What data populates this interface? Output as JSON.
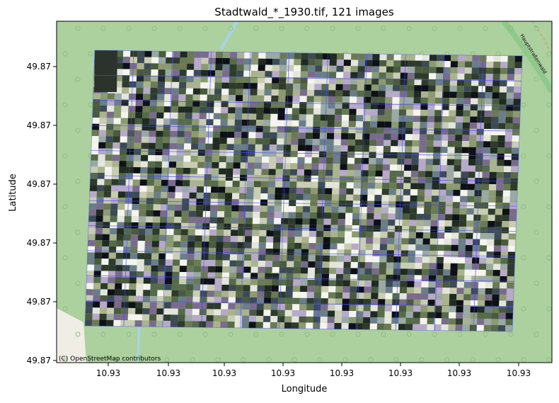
{
  "chart_data": {
    "type": "map",
    "title": "Stadtwald_*_1930.tif, 121 images",
    "xlabel": "Longitude",
    "ylabel": "Latitude",
    "xtick_labels": [
      "10.93",
      "10.93",
      "10.93",
      "10.93",
      "10.93",
      "10.93",
      "10.93",
      "10.93"
    ],
    "ytick_labels": [
      "49.87",
      "49.87",
      "49.87",
      "49.87",
      "49.87",
      "49.87"
    ],
    "image_count": 121,
    "grid_rows": 11,
    "grid_cols": 11,
    "attribution": "(C) OpenStreetMap contributors",
    "street_label": "Hauptstraßenwald",
    "colors": {
      "basemap_forest": "#acd09e",
      "basemap_open": "#f0ede5",
      "stream": "#aad3df",
      "tile_outline": "#4a4aff"
    }
  }
}
